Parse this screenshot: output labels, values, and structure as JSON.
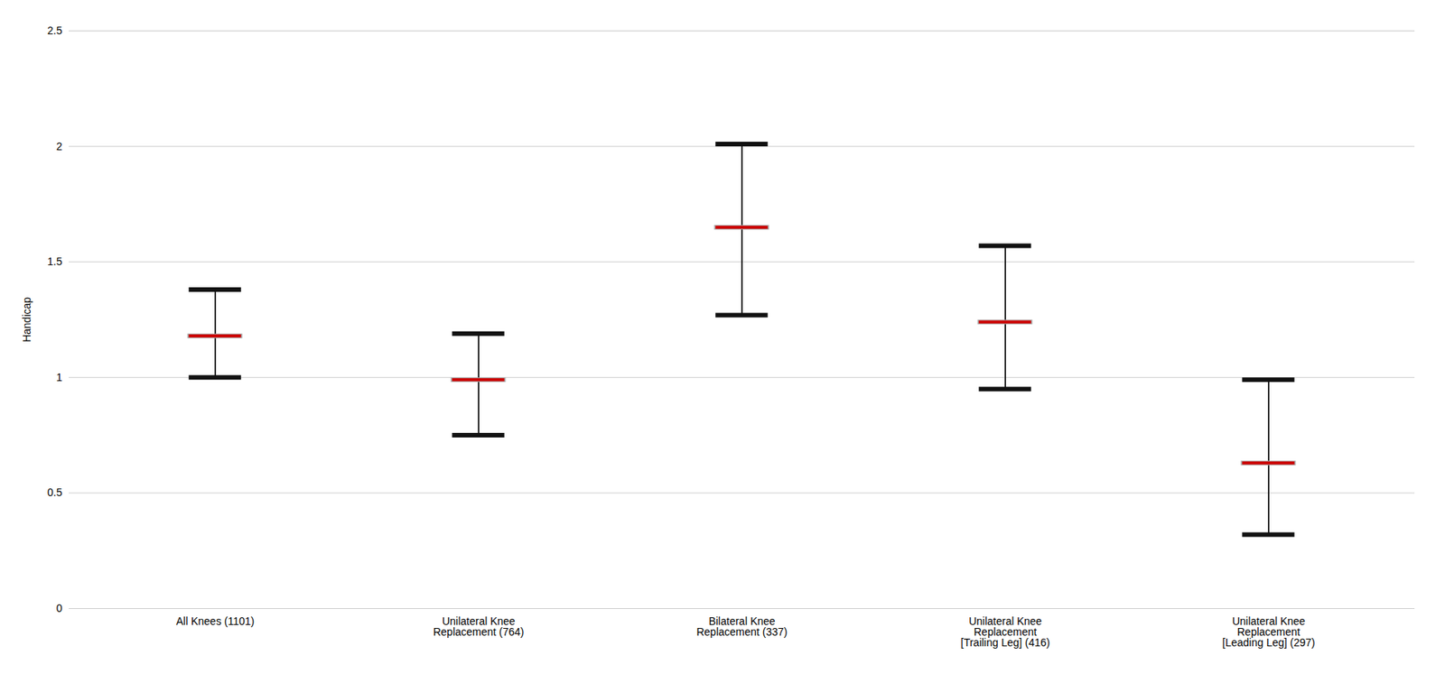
{
  "chart_data": {
    "type": "errorbar",
    "categories": [
      "All Knees (1101)",
      "Unilateral Knee\nReplacement (764)",
      "Bilateral Knee\nReplacement (337)",
      "Unilateral Knee\nReplacement\n[Trailing Leg] (416)",
      "Unilateral Knee\nReplacement\n[Leading Leg] (297)"
    ],
    "values": [
      1.18,
      0.99,
      1.65,
      1.24,
      0.63
    ],
    "ci_lower": [
      1.0,
      0.75,
      1.27,
      0.95,
      0.32
    ],
    "ci_upper": [
      1.38,
      1.19,
      2.01,
      1.57,
      0.99
    ],
    "color": "#cc0000",
    "error_color": "#111111",
    "ylabel": "Handicap",
    "ylim": [
      0,
      2.5
    ],
    "yticks": [
      0,
      0.5,
      1,
      1.5,
      2,
      2.5
    ],
    "grid": true
  }
}
